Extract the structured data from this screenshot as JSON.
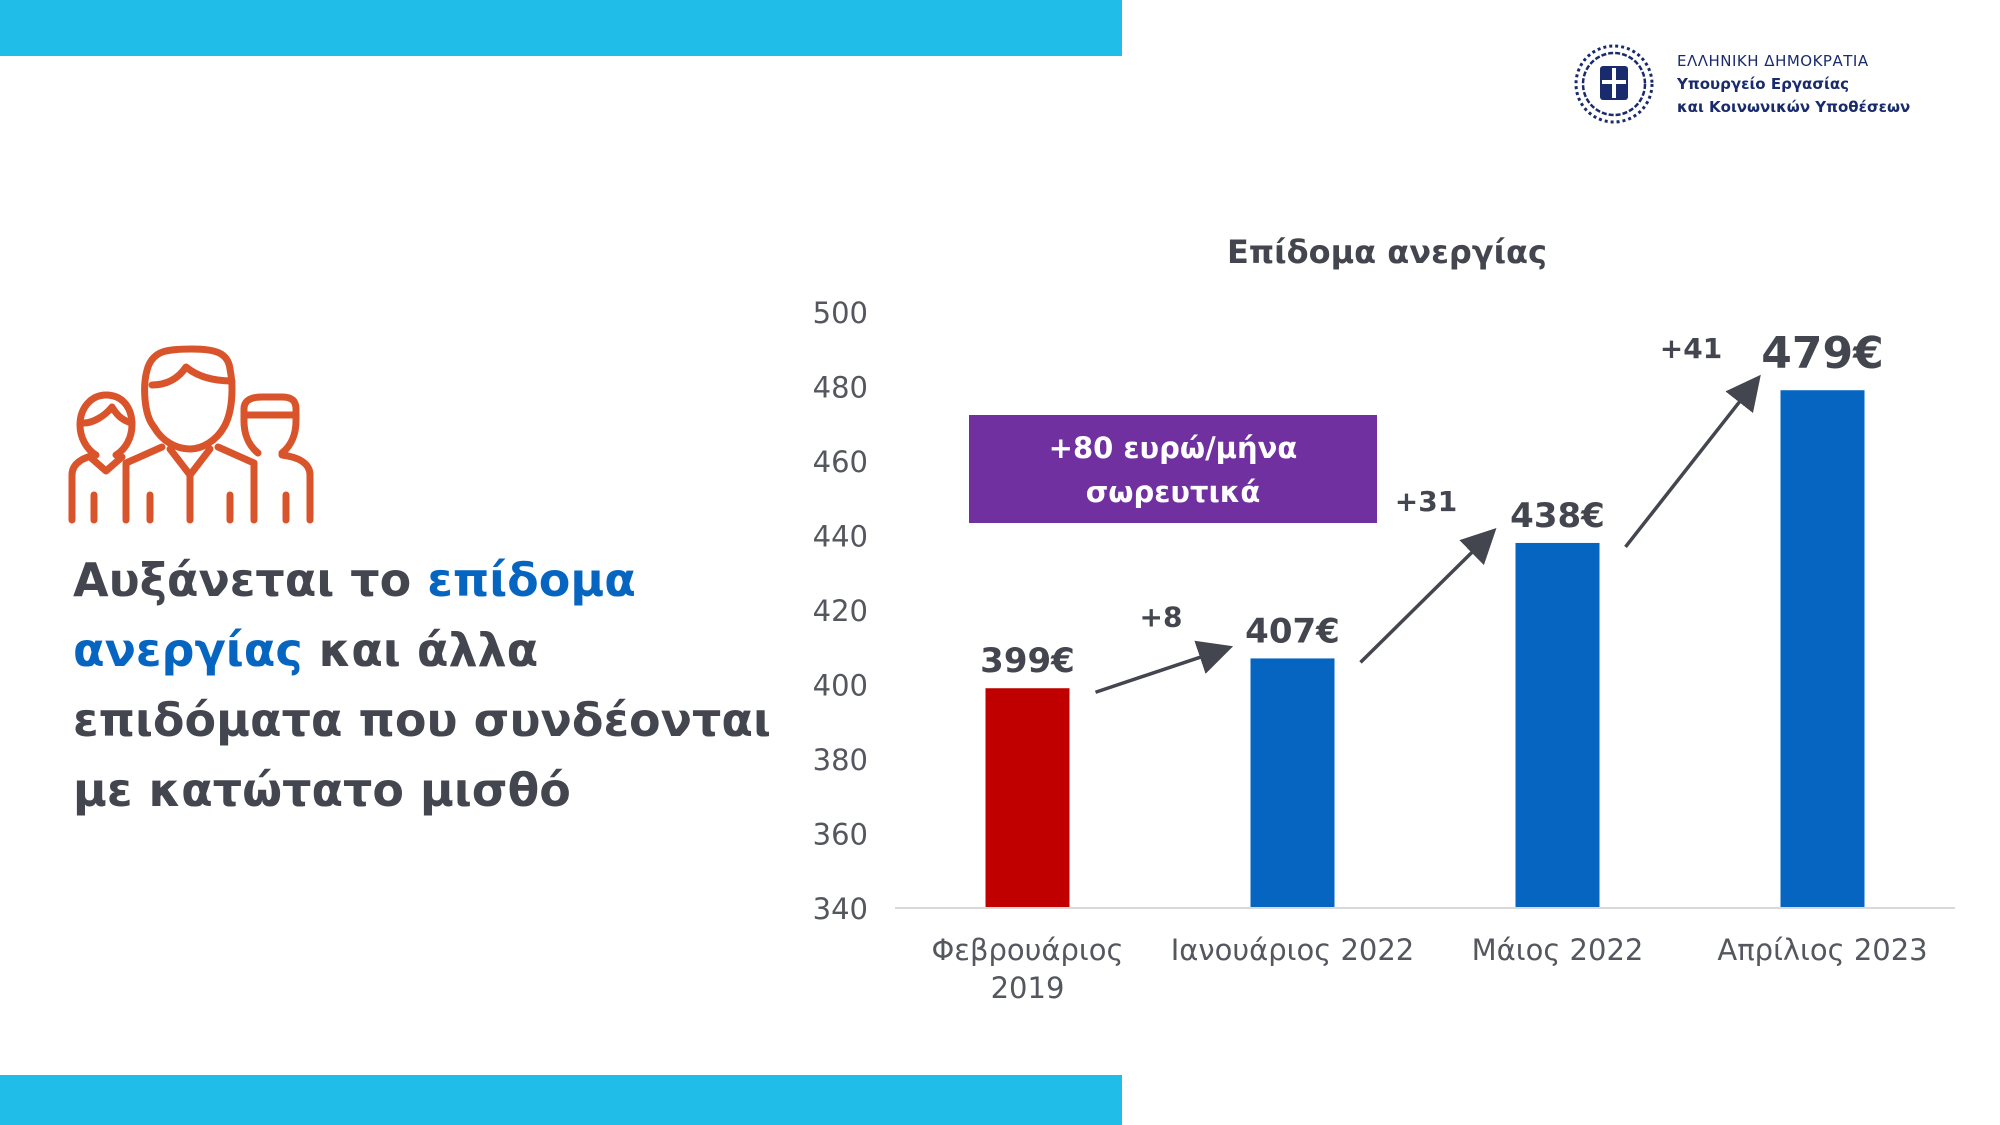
{
  "colors": {
    "band": "#20bde8",
    "icon": "#d9542b",
    "headline_accent": "#0565c0",
    "bar_blue": "#0565c0",
    "bar_red": "#c00000",
    "callout_bg": "#7030a0",
    "text_dark": "#44464f",
    "logo_blue": "#1a2b6d"
  },
  "logo": {
    "icon": "greek-coat-of-arms-icon",
    "line1": "ΕΛΛΗΝΙΚΗ ΔΗΜΟΚΡΑΤΙΑ",
    "line2": "Υπουργείο Εργασίας",
    "line3": "και Κοινωνικών Υποθέσεων"
  },
  "left_icon": "people-group-icon",
  "headline": {
    "part1": "Αυξάνεται το ",
    "highlight": "επίδομα ανεργίας",
    "part2": " και άλλα επιδόματα που συνδέονται με κατώτατο μισθό"
  },
  "chart_data": {
    "type": "bar",
    "title": "Επίδομα ανεργίας",
    "categories": [
      "Φεβρουάριος 2019",
      "Ιανουάριος 2022",
      "Μάιος 2022",
      "Απρίλιος 2023"
    ],
    "values": [
      399,
      407,
      438,
      479
    ],
    "value_labels": [
      "399€",
      "407€",
      "438€",
      "479€"
    ],
    "bar_colors": [
      "#c00000",
      "#0565c0",
      "#0565c0",
      "#0565c0"
    ],
    "ylim": [
      340,
      500
    ],
    "yticks": [
      "340",
      "360",
      "380",
      "400",
      "420",
      "440",
      "460",
      "480",
      "500"
    ],
    "grid": false,
    "increments": [
      "+8",
      "+31",
      "+41"
    ],
    "callout": {
      "line1": "+80 ευρώ/μήνα",
      "line2": "σωρευτικά"
    }
  }
}
